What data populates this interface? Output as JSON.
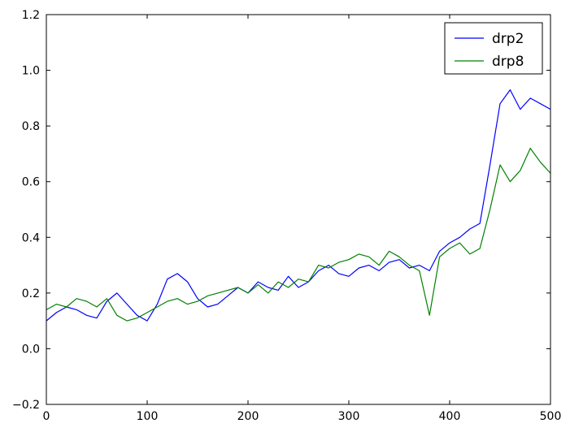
{
  "chart_data": {
    "type": "line",
    "title": "",
    "xlabel": "",
    "ylabel": "",
    "xlim": [
      0,
      500
    ],
    "ylim": [
      -0.2,
      1.2
    ],
    "x_ticks": [
      0,
      100,
      200,
      300,
      400,
      500
    ],
    "x_tick_labels": [
      "0",
      "100",
      "200",
      "300",
      "400",
      "500"
    ],
    "y_ticks": [
      -0.2,
      0.0,
      0.2,
      0.4,
      0.6,
      0.8,
      1.0,
      1.2
    ],
    "y_tick_labels": [
      "−0.2",
      "0.0",
      "0.2",
      "0.4",
      "0.6",
      "0.8",
      "1.0",
      "1.2"
    ],
    "grid": false,
    "legend_position": "top-right",
    "series": [
      {
        "name": "drp2",
        "color": "#0000ff",
        "x": [
          0,
          10,
          20,
          30,
          40,
          50,
          60,
          70,
          80,
          90,
          100,
          110,
          120,
          130,
          140,
          150,
          160,
          170,
          180,
          190,
          200,
          210,
          220,
          230,
          240,
          250,
          260,
          270,
          280,
          290,
          300,
          310,
          320,
          330,
          340,
          350,
          360,
          370,
          380,
          390,
          400,
          410,
          420,
          430,
          440,
          450,
          460,
          470,
          480,
          490,
          500
        ],
        "values": [
          0.1,
          0.13,
          0.15,
          0.14,
          0.12,
          0.11,
          0.17,
          0.2,
          0.16,
          0.12,
          0.1,
          0.16,
          0.25,
          0.27,
          0.24,
          0.18,
          0.15,
          0.16,
          0.19,
          0.22,
          0.2,
          0.24,
          0.22,
          0.21,
          0.26,
          0.22,
          0.24,
          0.28,
          0.3,
          0.27,
          0.26,
          0.29,
          0.3,
          0.28,
          0.31,
          0.32,
          0.29,
          0.3,
          0.28,
          0.35,
          0.38,
          0.4,
          0.43,
          0.45,
          0.66,
          0.88,
          0.93,
          0.86,
          0.9,
          0.88,
          0.86
        ]
      },
      {
        "name": "drp8",
        "color": "#008000",
        "x": [
          0,
          10,
          20,
          30,
          40,
          50,
          60,
          70,
          80,
          90,
          100,
          110,
          120,
          130,
          140,
          150,
          160,
          170,
          180,
          190,
          200,
          210,
          220,
          230,
          240,
          250,
          260,
          270,
          280,
          290,
          300,
          310,
          320,
          330,
          340,
          350,
          360,
          370,
          380,
          390,
          400,
          410,
          420,
          430,
          440,
          450,
          460,
          470,
          480,
          490,
          500
        ],
        "values": [
          0.14,
          0.16,
          0.15,
          0.18,
          0.17,
          0.15,
          0.18,
          0.12,
          0.1,
          0.11,
          0.13,
          0.15,
          0.17,
          0.18,
          0.16,
          0.17,
          0.19,
          0.2,
          0.21,
          0.22,
          0.2,
          0.23,
          0.2,
          0.24,
          0.22,
          0.25,
          0.24,
          0.3,
          0.29,
          0.31,
          0.32,
          0.34,
          0.33,
          0.3,
          0.35,
          0.33,
          0.3,
          0.28,
          0.12,
          0.33,
          0.36,
          0.38,
          0.34,
          0.36,
          0.5,
          0.66,
          0.6,
          0.64,
          0.72,
          0.67,
          0.63
        ]
      }
    ]
  }
}
